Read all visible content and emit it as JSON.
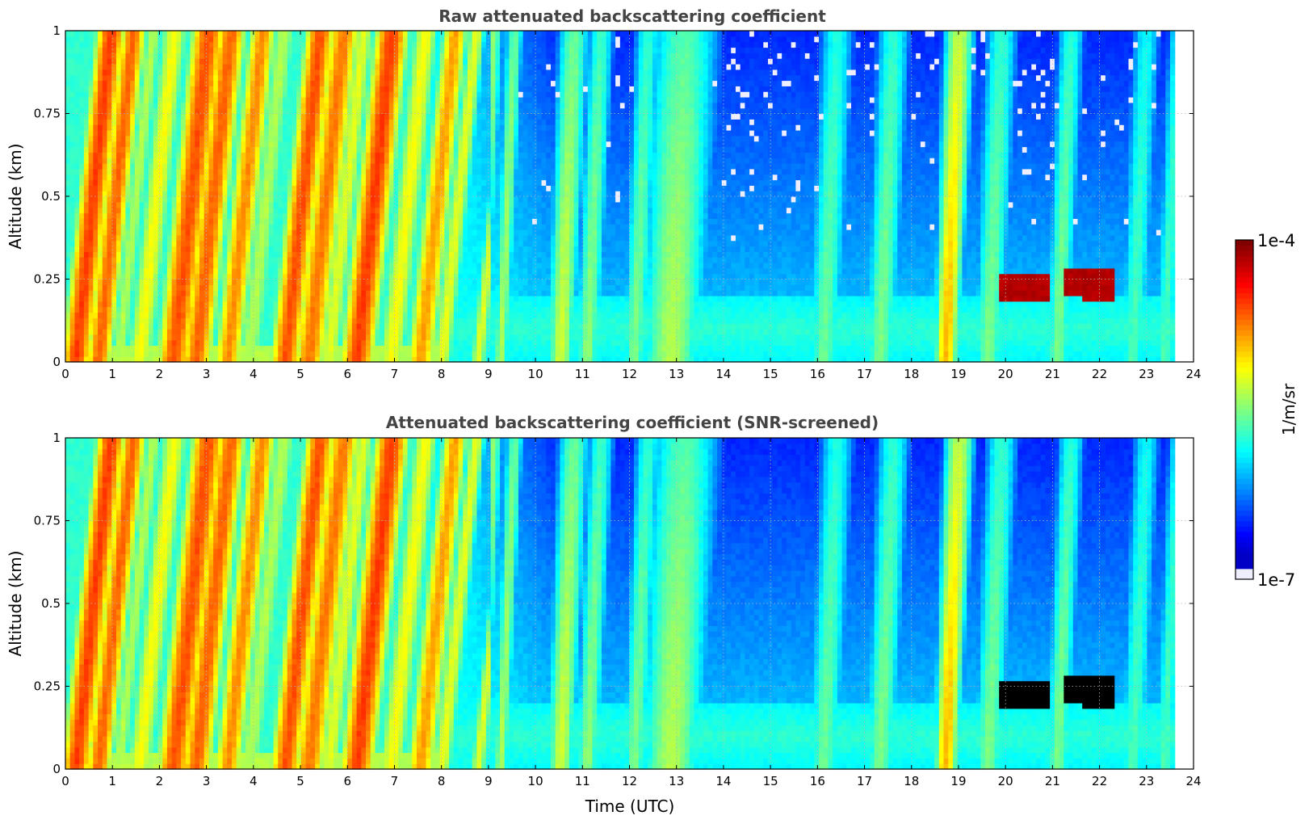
{
  "chart_data": [
    {
      "type": "heatmap",
      "title": "Raw attenuated backscattering coefficient",
      "ylabel": "Altitude (km)",
      "xlabel": "",
      "xlim": [
        0,
        24
      ],
      "ylim": [
        0,
        1
      ],
      "x_ticks": [
        "0",
        "1",
        "2",
        "3",
        "4",
        "5",
        "6",
        "7",
        "8",
        "9",
        "10",
        "11",
        "12",
        "13",
        "14",
        "15",
        "16",
        "17",
        "18",
        "19",
        "20",
        "21",
        "22",
        "23",
        "24"
      ],
      "y_ticks": [
        "0",
        "0.25",
        "0.5",
        "0.75",
        "1"
      ],
      "data_end_hour": 23.6,
      "grid": true,
      "screened": false
    },
    {
      "type": "heatmap",
      "title": "Attenuated backscattering coefficient (SNR-screened)",
      "ylabel": "Altitude (km)",
      "xlabel": "Time (UTC)",
      "xlim": [
        0,
        24
      ],
      "ylim": [
        0,
        1
      ],
      "x_ticks": [
        "0",
        "1",
        "2",
        "3",
        "4",
        "5",
        "6",
        "7",
        "8",
        "9",
        "10",
        "11",
        "12",
        "13",
        "14",
        "15",
        "16",
        "17",
        "18",
        "19",
        "20",
        "21",
        "22",
        "23",
        "24"
      ],
      "y_ticks": [
        "0",
        "0.25",
        "0.5",
        "0.75",
        "1"
      ],
      "data_end_hour": 23.6,
      "grid": true,
      "screened": true
    }
  ],
  "colorbar": {
    "label": "1/m/sr",
    "min_label": "1e-7",
    "max_label": "1e-4",
    "colormap": "jet",
    "orientation": "vertical",
    "placement": "right"
  },
  "colors": {
    "title": "#444444",
    "saturated_screened": "#000000",
    "low_end": "#e6e6ff",
    "high_end": "#800000"
  }
}
